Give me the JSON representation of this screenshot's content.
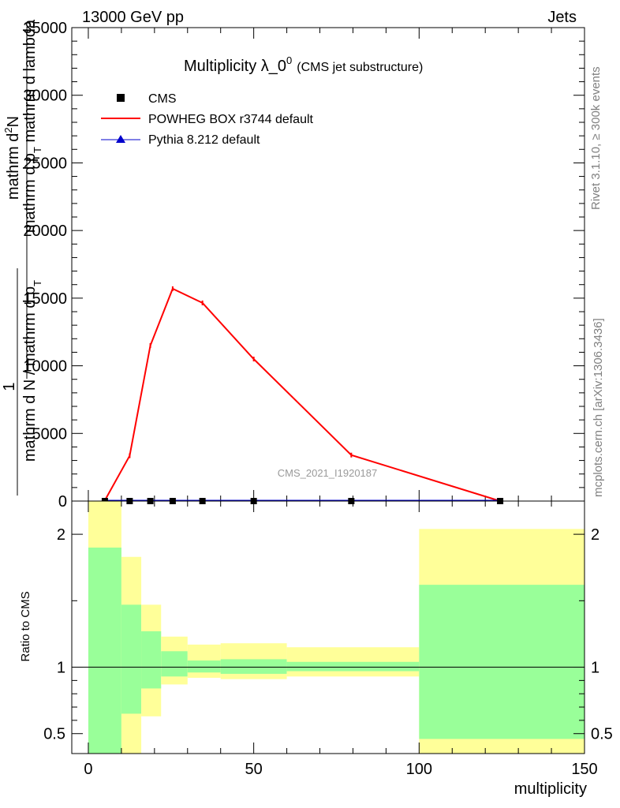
{
  "header": {
    "left": "13000 GeV pp",
    "right": "Jets"
  },
  "side_text": {
    "rivet": "Rivet 3.1.10, ≥ 300k events",
    "mcplots": "mcplots.cern.ch [arXiv:1306.3436]"
  },
  "colors": {
    "cms": "#000000",
    "powheg": "#ff0000",
    "pythia": "#0000cc",
    "band_inner": "#99ff99",
    "band_outer": "#ffff99"
  },
  "chart_data": [
    {
      "type": "line",
      "title": "Multiplicity λ_0⁰ (CMS jet substructure)",
      "title_main": "Multiplicity λ_0",
      "title_sup": "0",
      "title_sub": "(CMS jet substructure)",
      "watermark": "CMS_2021_I1920187",
      "ylabel_num": "mathrm d²N",
      "ylabel_num_parts": {
        "a": "mathrm d",
        "sup": "2",
        "b": "N"
      },
      "ylabel_den": "mathrm d p_T mathrm d lambda",
      "ylabel_den_parts": {
        "a": "mathrm d p",
        "sub": "T",
        "b": " mathrm d lambda"
      },
      "ylabel_one": "1",
      "ylabel_left_num": "mathrm d N / mathrm d p_T",
      "ylabel_left_parts": {
        "a": "mathrm d N / mathrm d p",
        "sub": "T"
      },
      "ylabel_left_den": "mathrm d N / mathrm d p_T",
      "xlim": [
        -5,
        150
      ],
      "ylim": [
        0,
        35000
      ],
      "yticks": [
        0,
        5000,
        10000,
        15000,
        20000,
        25000,
        30000,
        35000
      ],
      "yticklabels": [
        "0",
        "5000",
        "10000",
        "15000",
        "20000",
        "25000",
        "30000",
        "35000"
      ],
      "legend": [
        "CMS",
        "POWHEG BOX r3744 default",
        "Pythia 8.212 default"
      ],
      "legend_position": "top-left",
      "series": [
        {
          "name": "CMS",
          "x": [
            5,
            12.5,
            18.75,
            25.5,
            34.5,
            50,
            79.5,
            124.5
          ],
          "y": [
            0,
            0,
            0,
            0,
            0,
            0,
            0,
            0
          ]
        },
        {
          "name": "POWHEG BOX r3744 default",
          "x": [
            5,
            12.5,
            18.75,
            25.5,
            34.5,
            50,
            79.5,
            124.5
          ],
          "y": [
            50,
            3350,
            11500,
            15700,
            14650,
            10500,
            3400,
            0
          ]
        },
        {
          "name": "Pythia 8.212 default",
          "x": [
            5,
            12.5,
            18.75,
            25.5,
            34.5,
            50,
            79.5,
            124.5
          ],
          "y": [
            0,
            0,
            0,
            0,
            0,
            0,
            0,
            0
          ]
        }
      ]
    },
    {
      "type": "area",
      "ylabel": "Ratio to CMS",
      "xlabel": "multiplicity",
      "xlim": [
        -5,
        150
      ],
      "ylim": [
        0.35,
        2.25
      ],
      "xticks": [
        0,
        50,
        100,
        150
      ],
      "xticklabels": [
        "0",
        "50",
        "100",
        "150"
      ],
      "yticks": [
        0.5,
        1,
        2
      ],
      "yticklabels": [
        "0.5",
        "1",
        "2"
      ],
      "bins": [
        {
          "x0": 0,
          "x1": 10,
          "inner": [
            0.35,
            1.9
          ],
          "outer": [
            0.35,
            2.25
          ]
        },
        {
          "x0": 10,
          "x1": 16,
          "inner": [
            0.65,
            1.47
          ],
          "outer": [
            0.35,
            1.83
          ]
        },
        {
          "x0": 16,
          "x1": 22,
          "inner": [
            0.84,
            1.27
          ],
          "outer": [
            0.63,
            1.47
          ]
        },
        {
          "x0": 22,
          "x1": 30,
          "inner": [
            0.93,
            1.12
          ],
          "outer": [
            0.87,
            1.23
          ]
        },
        {
          "x0": 30,
          "x1": 40,
          "inner": [
            0.96,
            1.05
          ],
          "outer": [
            0.92,
            1.17
          ]
        },
        {
          "x0": 40,
          "x1": 60,
          "inner": [
            0.95,
            1.06
          ],
          "outer": [
            0.91,
            1.18
          ]
        },
        {
          "x0": 60,
          "x1": 100,
          "inner": [
            0.97,
            1.04
          ],
          "outer": [
            0.93,
            1.15
          ]
        },
        {
          "x0": 100,
          "x1": 150,
          "inner": [
            0.46,
            1.62
          ],
          "outer": [
            0.35,
            2.04
          ]
        }
      ]
    }
  ]
}
